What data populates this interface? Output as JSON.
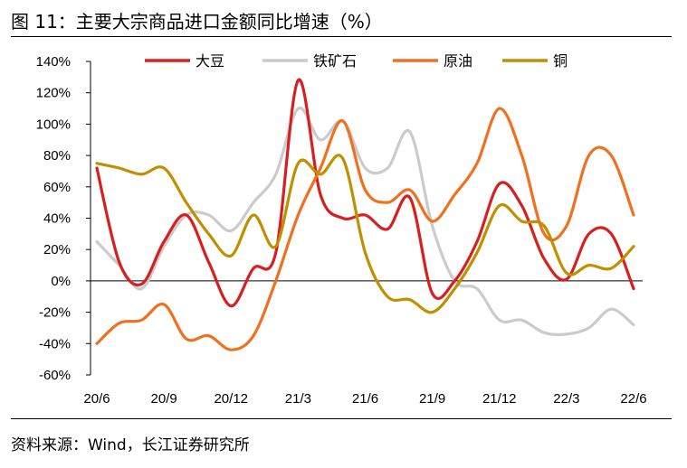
{
  "title": "图 11：主要大宗商品进口金额同比增速（%）",
  "source": "资料来源：Wind，长江证券研究所",
  "chart_data": {
    "type": "line",
    "title": "图 11：主要大宗商品进口金额同比增速（%）",
    "xlabel": "",
    "ylabel": "",
    "ylim": [
      -60,
      140
    ],
    "yticks": [
      -60,
      -40,
      -20,
      0,
      20,
      40,
      60,
      80,
      100,
      120,
      140
    ],
    "ytick_labels": [
      "-60%",
      "-40%",
      "-20%",
      "0%",
      "20%",
      "40%",
      "60%",
      "80%",
      "100%",
      "120%",
      "140%"
    ],
    "x": [
      "20/6",
      "20/7",
      "20/8",
      "20/9",
      "20/10",
      "20/11",
      "20/12",
      "21/1",
      "21/2",
      "21/3",
      "21/4",
      "21/5",
      "21/6",
      "21/7",
      "21/8",
      "21/9",
      "21/10",
      "21/11",
      "21/12",
      "22/1",
      "22/2",
      "22/3",
      "22/4",
      "22/5",
      "22/6"
    ],
    "xtick_labels": [
      "20/6",
      "20/9",
      "20/12",
      "21/3",
      "21/6",
      "21/9",
      "21/12",
      "22/3",
      "22/6"
    ],
    "grid": false,
    "legend_position": "top",
    "series": [
      {
        "name": "大豆",
        "color": "#d71f1f",
        "values": [
          72,
          12,
          -2,
          25,
          42,
          12,
          -16,
          8,
          18,
          128,
          55,
          40,
          42,
          33,
          53,
          -8,
          0,
          25,
          62,
          48,
          14,
          1,
          30,
          30,
          -5
        ]
      },
      {
        "name": "铁矿石",
        "color": "#cbcbcb",
        "values": [
          25,
          10,
          -5,
          22,
          42,
          42,
          32,
          50,
          68,
          110,
          90,
          102,
          72,
          72,
          95,
          35,
          0,
          -5,
          -25,
          -25,
          -33,
          -34,
          -30,
          -18,
          -28
        ]
      },
      {
        "name": "原油",
        "color": "#f07020",
        "values": [
          -40,
          -27,
          -25,
          -15,
          -37,
          -35,
          -44,
          -35,
          0,
          42,
          72,
          102,
          58,
          50,
          58,
          38,
          55,
          75,
          110,
          80,
          30,
          35,
          80,
          80,
          42
        ]
      },
      {
        "name": "铜",
        "color": "#bf9000",
        "values": [
          75,
          72,
          68,
          72,
          50,
          30,
          16,
          42,
          22,
          75,
          68,
          78,
          18,
          -10,
          -12,
          -20,
          -5,
          18,
          48,
          38,
          35,
          5,
          10,
          8,
          22
        ]
      }
    ]
  }
}
